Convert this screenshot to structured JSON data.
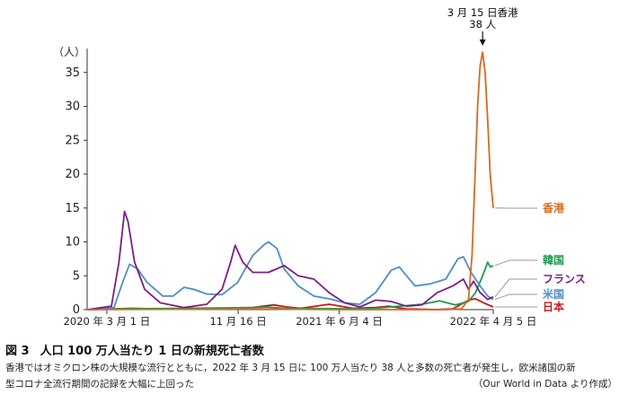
{
  "chart_data": {
    "type": "line",
    "y_unit_label": "（人）",
    "ylim": [
      0,
      38
    ],
    "y_ticks": [
      0,
      5,
      10,
      15,
      20,
      25,
      30,
      35
    ],
    "x_range": [
      "2020-01-22",
      "2022-04-05"
    ],
    "x_tick_labels": [
      {
        "date": "2020-03-01",
        "label": "2020 年 3 月 1 日"
      },
      {
        "date": "2020-11-16",
        "label": "11 月 16 日"
      },
      {
        "date": "2021-06-04",
        "label": "2021 年 6 月 4 日"
      },
      {
        "date": "2022-04-05",
        "label": "2022 年 4 月 5 日"
      }
    ],
    "annotation": {
      "date": "2022-03-15",
      "value": 38,
      "line1": "3 月 15 日香港",
      "line2": "38 人"
    },
    "grid": false,
    "series": [
      {
        "name": "香港",
        "color": "#d9691f",
        "points": [
          [
            "2020-01-22",
            0
          ],
          [
            "2021-01-01",
            0.1
          ],
          [
            "2021-06-01",
            0
          ],
          [
            "2022-01-01",
            0
          ],
          [
            "2022-02-01",
            0.1
          ],
          [
            "2022-02-15",
            1.5
          ],
          [
            "2022-02-22",
            8
          ],
          [
            "2022-02-28",
            20
          ],
          [
            "2022-03-05",
            30
          ],
          [
            "2022-03-10",
            36
          ],
          [
            "2022-03-15",
            38
          ],
          [
            "2022-03-20",
            35
          ],
          [
            "2022-03-25",
            28
          ],
          [
            "2022-03-30",
            20
          ],
          [
            "2022-04-05",
            15
          ]
        ]
      },
      {
        "name": "韓国",
        "color": "#1e9a4c",
        "points": [
          [
            "2020-01-22",
            0
          ],
          [
            "2020-04-01",
            0.1
          ],
          [
            "2020-12-15",
            0.3
          ],
          [
            "2021-01-10",
            0.4
          ],
          [
            "2021-02-15",
            0.2
          ],
          [
            "2021-08-01",
            0.1
          ],
          [
            "2021-11-15",
            0.8
          ],
          [
            "2021-12-20",
            1.3
          ],
          [
            "2022-01-20",
            0.7
          ],
          [
            "2022-02-15",
            1.2
          ],
          [
            "2022-03-01",
            2.5
          ],
          [
            "2022-03-15",
            5
          ],
          [
            "2022-03-25",
            7
          ],
          [
            "2022-03-30",
            6.3
          ],
          [
            "2022-04-05",
            6.5
          ]
        ]
      },
      {
        "name": "フランス",
        "color": "#7b1e84",
        "points": [
          [
            "2020-01-22",
            0
          ],
          [
            "2020-03-10",
            0.5
          ],
          [
            "2020-03-25",
            7
          ],
          [
            "2020-04-05",
            14.5
          ],
          [
            "2020-04-12",
            13
          ],
          [
            "2020-04-25",
            7
          ],
          [
            "2020-05-15",
            3
          ],
          [
            "2020-06-15",
            1
          ],
          [
            "2020-08-01",
            0.3
          ],
          [
            "2020-09-15",
            0.8
          ],
          [
            "2020-10-15",
            3
          ],
          [
            "2020-11-01",
            7
          ],
          [
            "2020-11-10",
            9.5
          ],
          [
            "2020-11-25",
            7
          ],
          [
            "2020-12-15",
            5.5
          ],
          [
            "2021-01-15",
            5.5
          ],
          [
            "2021-02-15",
            6.5
          ],
          [
            "2021-03-15",
            5
          ],
          [
            "2021-04-15",
            4.5
          ],
          [
            "2021-05-15",
            2.5
          ],
          [
            "2021-06-15",
            1
          ],
          [
            "2021-07-15",
            0.4
          ],
          [
            "2021-08-15",
            1.4
          ],
          [
            "2021-09-15",
            1.2
          ],
          [
            "2021-10-15",
            0.5
          ],
          [
            "2021-11-15",
            0.7
          ],
          [
            "2021-12-15",
            2.5
          ],
          [
            "2022-01-15",
            3.5
          ],
          [
            "2022-02-05",
            4.5
          ],
          [
            "2022-02-15",
            3
          ],
          [
            "2022-02-25",
            4.2
          ],
          [
            "2022-03-10",
            2.5
          ],
          [
            "2022-03-25",
            1.5
          ],
          [
            "2022-04-05",
            1.9
          ]
        ]
      },
      {
        "name": "米国",
        "color": "#4f8cc9",
        "points": [
          [
            "2020-01-22",
            0
          ],
          [
            "2020-03-15",
            0.3
          ],
          [
            "2020-04-01",
            4
          ],
          [
            "2020-04-15",
            6.7
          ],
          [
            "2020-05-01",
            6
          ],
          [
            "2020-05-20",
            4
          ],
          [
            "2020-06-20",
            2
          ],
          [
            "2020-07-10",
            2
          ],
          [
            "2020-08-01",
            3.3
          ],
          [
            "2020-08-20",
            3
          ],
          [
            "2020-09-15",
            2.3
          ],
          [
            "2020-10-15",
            2.2
          ],
          [
            "2020-11-15",
            4
          ],
          [
            "2020-12-15",
            8
          ],
          [
            "2021-01-05",
            9.5
          ],
          [
            "2021-01-15",
            10
          ],
          [
            "2021-02-01",
            9
          ],
          [
            "2021-02-15",
            6
          ],
          [
            "2021-03-15",
            3.5
          ],
          [
            "2021-04-15",
            2
          ],
          [
            "2021-05-15",
            1.6
          ],
          [
            "2021-06-15",
            1
          ],
          [
            "2021-07-15",
            0.8
          ],
          [
            "2021-08-15",
            2.5
          ],
          [
            "2021-09-15",
            5.8
          ],
          [
            "2021-10-01",
            6.3
          ],
          [
            "2021-11-01",
            3.5
          ],
          [
            "2021-12-01",
            3.8
          ],
          [
            "2022-01-01",
            4.5
          ],
          [
            "2022-01-25",
            7.5
          ],
          [
            "2022-02-05",
            7.8
          ],
          [
            "2022-02-20",
            5.5
          ],
          [
            "2022-03-10",
            3.5
          ],
          [
            "2022-03-25",
            2
          ],
          [
            "2022-04-05",
            1.5
          ]
        ]
      },
      {
        "name": "日本",
        "color": "#c8171d",
        "points": [
          [
            "2020-01-22",
            0
          ],
          [
            "2020-04-20",
            0.2
          ],
          [
            "2020-07-15",
            0.05
          ],
          [
            "2020-09-01",
            0.1
          ],
          [
            "2020-12-15",
            0.3
          ],
          [
            "2021-01-25",
            0.7
          ],
          [
            "2021-02-20",
            0.4
          ],
          [
            "2021-03-20",
            0.2
          ],
          [
            "2021-05-15",
            0.8
          ],
          [
            "2021-07-01",
            0.2
          ],
          [
            "2021-08-15",
            0.3
          ],
          [
            "2021-09-10",
            0.5
          ],
          [
            "2021-10-15",
            0.1
          ],
          [
            "2021-12-15",
            0.01
          ],
          [
            "2022-01-15",
            0.1
          ],
          [
            "2022-02-15",
            1.4
          ],
          [
            "2022-03-01",
            1.6
          ],
          [
            "2022-03-20",
            0.9
          ],
          [
            "2022-04-05",
            0.4
          ]
        ]
      }
    ]
  },
  "figure": {
    "number": "図 3",
    "title": "人口 100 万人当たり 1 日の新規死亡者数",
    "description_line1": "香港ではオミクロン株の大規模な流行とともに，2022 年 3 月 15 日に 100 万人当たり 38 人と多数の死亡者が発生し，欧米諸国の新",
    "description_line2": "型コロナ全流行期間の記録を大幅に上回った",
    "source": "（Our World in Data より作成）"
  }
}
